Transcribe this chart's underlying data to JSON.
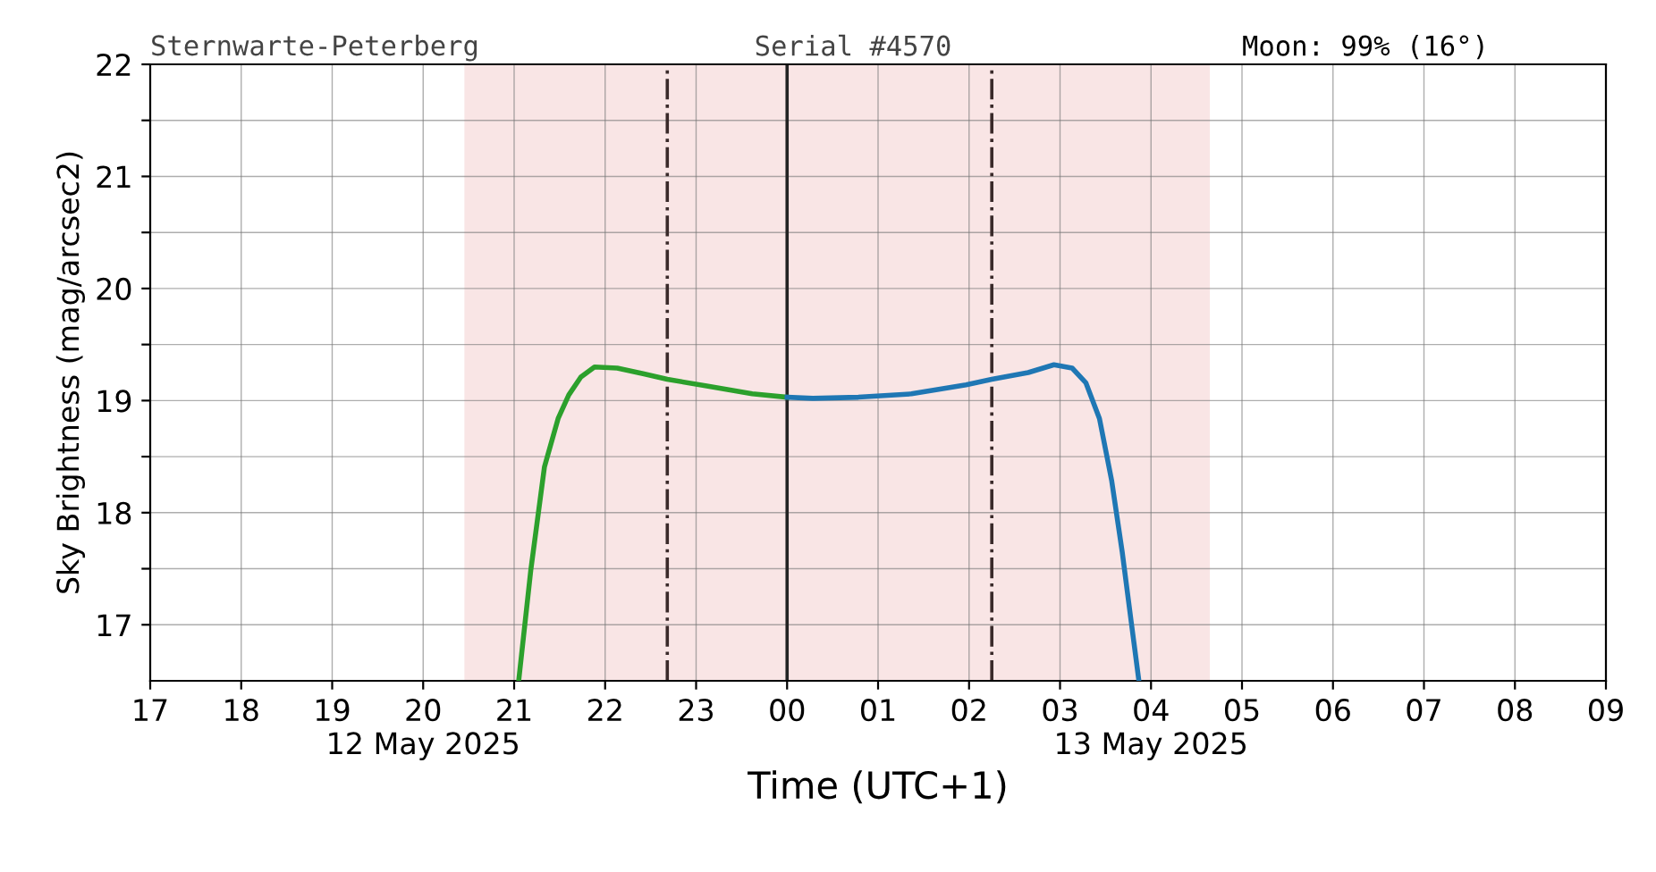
{
  "chart_data": {
    "type": "line",
    "annotations": [
      "Sternwarte-Peterberg",
      "Serial #4570",
      "Moon: 99% (16°)"
    ],
    "xlabel": "Time (UTC+1)",
    "ylabel": "Sky Brightness (mag/arcsec2)",
    "series": [
      {
        "color": "#2ca02c",
        "x": [
          "2025-05-12T21:03",
          "2025-05-12T21:11",
          "2025-05-12T21:20",
          "2025-05-12T21:29",
          "2025-05-12T21:36",
          "2025-05-12T21:44",
          "2025-05-12T21:53",
          "2025-05-12T22:08",
          "2025-05-12T22:25",
          "2025-05-12T22:41",
          "2025-05-12T23:07",
          "2025-05-12T23:37",
          "2025-05-13T00:00"
        ],
        "values": [
          16.5,
          17.49,
          18.41,
          18.84,
          19.05,
          19.21,
          19.3,
          19.29,
          19.24,
          19.19,
          19.13,
          19.06,
          19.03
        ]
      },
      {
        "color": "#1f77b4",
        "x": [
          "2025-05-13T00:00",
          "2025-05-13T00:17",
          "2025-05-13T00:47",
          "2025-05-13T01:22",
          "2025-05-13T01:58",
          "2025-05-13T02:15",
          "2025-05-13T02:39",
          "2025-05-13T02:56",
          "2025-05-13T03:08",
          "2025-05-13T03:17",
          "2025-05-13T03:26",
          "2025-05-13T03:34",
          "2025-05-13T03:41",
          "2025-05-13T03:47",
          "2025-05-13T03:52"
        ],
        "values": [
          19.03,
          19.02,
          19.03,
          19.06,
          19.14,
          19.19,
          19.25,
          19.32,
          19.29,
          19.16,
          18.84,
          18.29,
          17.65,
          17.02,
          16.5
        ]
      }
    ],
    "xlim": [
      "2025-05-12T17:00",
      "2025-05-13T09:00"
    ],
    "ylim": [
      16.5,
      22
    ],
    "xticks": [
      {
        "value": "2025-05-12T17:00",
        "label": "17"
      },
      {
        "value": "2025-05-12T18:00",
        "label": "18"
      },
      {
        "value": "2025-05-12T19:00",
        "label": "19"
      },
      {
        "value": "2025-05-12T20:00",
        "label": "20\n12 May 2025"
      },
      {
        "value": "2025-05-12T21:00",
        "label": "21"
      },
      {
        "value": "2025-05-12T22:00",
        "label": "22"
      },
      {
        "value": "2025-05-12T23:00",
        "label": "23"
      },
      {
        "value": "2025-05-13T00:00",
        "label": "00"
      },
      {
        "value": "2025-05-13T01:00",
        "label": "01"
      },
      {
        "value": "2025-05-13T02:00",
        "label": "02"
      },
      {
        "value": "2025-05-13T03:00",
        "label": "03"
      },
      {
        "value": "2025-05-13T04:00",
        "label": "04\n13 May 2025"
      },
      {
        "value": "2025-05-13T05:00",
        "label": "05"
      },
      {
        "value": "2025-05-13T06:00",
        "label": "06"
      },
      {
        "value": "2025-05-13T07:00",
        "label": "07"
      },
      {
        "value": "2025-05-13T08:00",
        "label": "08"
      },
      {
        "value": "2025-05-13T09:00",
        "label": "09"
      }
    ],
    "yticks": [
      17,
      {
        "value": 17.5,
        "label": null
      },
      18,
      {
        "value": 18.5,
        "label": null
      },
      19,
      {
        "value": 19.5,
        "label": null
      },
      20,
      {
        "value": 20.5,
        "label": null
      },
      21,
      {
        "value": 21.5,
        "label": null
      },
      22
    ],
    "ref_lines": [
      {
        "axis": "x",
        "value": "2025-05-12T22:41",
        "line_style": "dashdot",
        "color": "#3a2a2a"
      },
      {
        "axis": "x",
        "value": "2025-05-13T00:00",
        "line_style": "solid",
        "color": "#222222"
      },
      {
        "axis": "x",
        "value": "2025-05-13T02:15",
        "line_style": "dashdot",
        "color": "#3a2a2a"
      }
    ],
    "bands": [
      {
        "axis": "x",
        "from": "2025-05-12T20:28",
        "to": "2025-05-13T04:38",
        "color": "#f9e5e5"
      }
    ],
    "grid": true,
    "marker": "none",
    "line_style": "solid",
    "legend": false
  }
}
